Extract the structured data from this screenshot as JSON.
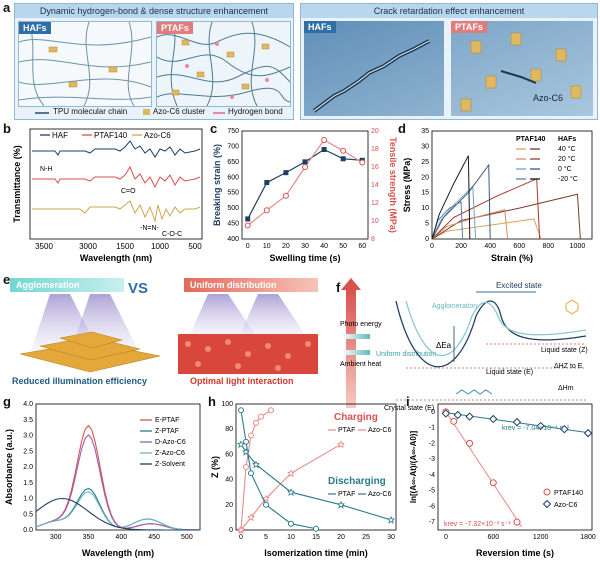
{
  "panel_labels": {
    "a": "a",
    "b": "b",
    "c": "c",
    "d": "d",
    "e": "e",
    "f": "f",
    "g": "g",
    "h": "h",
    "i": "i"
  },
  "panel_a": {
    "left_title": "Dynamic hydrogen-bond & dense structure enhancement",
    "right_title": "Crack retardation effect enhancement",
    "haf_tag": "HAFs",
    "ptaf_tag": "PTAFs",
    "legend": [
      "TPU molecular chain",
      "Azo-C6 cluster",
      "Hydrogen bond"
    ],
    "azo_label": "Azo-C6"
  },
  "panel_e": {
    "left_banner": "Agglomeration",
    "vs": "VS",
    "right_banner": "Uniform distribution",
    "left_caption": "Reduced illumination efficiency",
    "right_caption": "Optimal light interaction"
  },
  "panel_f": {
    "excited_state": "Excited state",
    "agglomeration": "Agglomeration",
    "uniform": "Uniform\ndistribution",
    "photo_energy": "Photo energy",
    "ambient_heat": "Ambient heat",
    "dEa": "ΔEa",
    "liquid_z": "Liquid state (Z)",
    "liquid_e": "Liquid state (E)",
    "crystal_e": "Crystal state (E)",
    "dH_zE": "ΔHZ to E",
    "dH_m": "ΔHm"
  },
  "chart_data": [
    {
      "id": "b",
      "type": "line",
      "xlabel": "Wavelength (nm)",
      "ylabel": "Transmittance (%)",
      "xticks": [
        "3500",
        "3000",
        "1500",
        "1000",
        "500"
      ],
      "series": [
        {
          "name": "HAF"
        },
        {
          "name": "PTAF140"
        },
        {
          "name": "Azo-C6"
        }
      ],
      "annotations": [
        "N-H",
        "C=O",
        "-N=N-",
        "C-O-C"
      ]
    },
    {
      "id": "c",
      "type": "line",
      "xlabel": "Swelling time (s)",
      "ylabel": "Breaking strain (%)",
      "y2label": "Tensile strength (MPa)",
      "x": [
        0,
        10,
        20,
        30,
        40,
        50,
        60
      ],
      "ylim": [
        400,
        750
      ],
      "y2lim": [
        8,
        20
      ],
      "yticks": [
        400,
        450,
        500,
        550,
        600,
        650,
        700,
        750
      ],
      "y2ticks": [
        8,
        10,
        12,
        14,
        16,
        18,
        20
      ],
      "series": [
        {
          "name": "Breaking strain",
          "values": [
            465,
            583,
            615,
            650,
            690,
            660,
            655
          ],
          "axis": "left"
        },
        {
          "name": "Tensile strength",
          "values": [
            9.5,
            11.2,
            12.8,
            16.0,
            19.0,
            17.8,
            16.5
          ],
          "axis": "right"
        }
      ]
    },
    {
      "id": "d",
      "type": "line",
      "xlabel": "Strain (%)",
      "ylabel": "Stress (MPa)",
      "xlim": [
        0,
        1100
      ],
      "ylim": [
        0,
        35
      ],
      "xticks": [
        0,
        200,
        400,
        600,
        800,
        1000
      ],
      "yticks": [
        0,
        5,
        10,
        15,
        20,
        25,
        30,
        35
      ],
      "legend_headers": [
        "PTAF140",
        "HAFs"
      ],
      "series": [
        {
          "name": "40 °C",
          "ptaf": [
            [
              0,
              0
            ],
            [
              100,
              2.5
            ],
            [
              400,
              4.5
            ],
            [
              700,
              6.5
            ],
            [
              750,
              0
            ]
          ],
          "haf": [
            [
              0,
              0
            ],
            [
              200,
              6
            ],
            [
              600,
              10
            ],
            [
              1000,
              14.5
            ],
            [
              1020,
              0
            ]
          ]
        },
        {
          "name": "20 °C",
          "ptaf": [
            [
              0,
              0
            ],
            [
              100,
              4
            ],
            [
              300,
              7
            ],
            [
              500,
              9.5
            ],
            [
              520,
              0
            ]
          ],
          "haf": [
            [
              0,
              0
            ],
            [
              150,
              7
            ],
            [
              450,
              14
            ],
            [
              720,
              19.5
            ],
            [
              740,
              0
            ]
          ]
        },
        {
          "name": "0 °C",
          "ptaf": [
            [
              0,
              0
            ],
            [
              60,
              6
            ],
            [
              150,
              11
            ],
            [
              280,
              17
            ],
            [
              300,
              0
            ]
          ],
          "haf": [
            [
              0,
              0
            ],
            [
              80,
              7
            ],
            [
              250,
              15
            ],
            [
              390,
              24
            ],
            [
              400,
              0
            ]
          ]
        },
        {
          "name": "-20 °C",
          "ptaf": [
            [
              0,
              0
            ],
            [
              40,
              6
            ],
            [
              120,
              10
            ],
            [
              200,
              12
            ],
            [
              210,
              0
            ]
          ],
          "haf": [
            [
              0,
              0
            ],
            [
              50,
              8
            ],
            [
              150,
              18
            ],
            [
              250,
              27
            ],
            [
              260,
              0
            ]
          ]
        }
      ]
    },
    {
      "id": "g",
      "type": "line",
      "xlabel": "Wavelength (nm)",
      "ylabel": "Absorbance (a.u.)",
      "xlim": [
        270,
        520
      ],
      "ylim": [
        0,
        4.0
      ],
      "xticks": [
        300,
        350,
        400,
        450,
        500
      ],
      "yticks": [
        0,
        0.5,
        1.0,
        1.5,
        2.0,
        2.5,
        3.0,
        3.5,
        4.0
      ],
      "series": [
        {
          "name": "E-PTAF",
          "peak_x": 350,
          "peak_y": 3.3
        },
        {
          "name": "Z-PTAF",
          "peak_x": 350,
          "peak_y": 1.3
        },
        {
          "name": "D-Azo-C6",
          "peak_x": 350,
          "peak_y": 3.0
        },
        {
          "name": "Z-Azo-C6",
          "peak_x": 350,
          "peak_y": 1.2
        },
        {
          "name": "Z-Solvent",
          "peak_x": 310,
          "peak_y": 1.0
        }
      ]
    },
    {
      "id": "h",
      "type": "line",
      "xlabel": "Isomerization time (min)",
      "ylabel": "Z (%)",
      "xlim": [
        -1,
        31
      ],
      "ylim": [
        0,
        100
      ],
      "xticks": [
        0,
        5,
        10,
        15,
        20,
        25,
        30
      ],
      "yticks": [
        0,
        20,
        40,
        60,
        80,
        100
      ],
      "annotations": [
        "Charging",
        "Discharging"
      ],
      "series": [
        {
          "name": "PTAF",
          "group": "Charging",
          "x": [
            0,
            1,
            2,
            3,
            4,
            6
          ],
          "values": [
            0,
            50,
            75,
            85,
            90,
            95
          ]
        },
        {
          "name": "Azo-C6",
          "group": "Charging",
          "x": [
            0,
            2,
            5,
            10,
            20
          ],
          "values": [
            0,
            10,
            25,
            45,
            68
          ]
        },
        {
          "name": "PTAF",
          "group": "Discharging",
          "x": [
            0,
            1,
            2,
            5,
            10,
            15
          ],
          "values": [
            95,
            70,
            45,
            20,
            5,
            1
          ]
        },
        {
          "name": "Azo-C6",
          "group": "Discharging",
          "x": [
            0,
            1,
            3,
            10,
            20,
            30
          ],
          "values": [
            68,
            62,
            52,
            30,
            20,
            8
          ]
        }
      ]
    },
    {
      "id": "i",
      "type": "scatter",
      "xlabel": "Reversion time (s)",
      "ylabel": "ln[(A∞-At)/(A∞-A0)]",
      "xlim": [
        -100,
        1850
      ],
      "ylim": [
        -7.5,
        0.5
      ],
      "xticks": [
        0,
        600,
        1200,
        1800
      ],
      "yticks": [
        0,
        -1,
        -2,
        -3,
        -4,
        -5,
        -6,
        -7
      ],
      "series": [
        {
          "name": "PTAF140",
          "x": [
            0,
            100,
            300,
            600,
            900
          ],
          "values": [
            0,
            -0.6,
            -2.0,
            -4.5,
            -7.0
          ],
          "fit_label": "krev = -7.32×10⁻³ s⁻¹"
        },
        {
          "name": "Azo-C6",
          "x": [
            0,
            150,
            300,
            600,
            900,
            1200,
            1500,
            1800
          ],
          "values": [
            -0.1,
            -0.2,
            -0.3,
            -0.45,
            -0.65,
            -0.9,
            -1.1,
            -1.35
          ],
          "fit_label": "krev = -7.04×10⁻⁴ s⁻¹"
        }
      ]
    }
  ],
  "colors": {
    "navy": "#1f3f63",
    "red": "#d9514e",
    "gold": "#d0a650",
    "teal": "#2a7a8c",
    "pink": "#e88a8a",
    "purple": "#9b5fb3"
  }
}
